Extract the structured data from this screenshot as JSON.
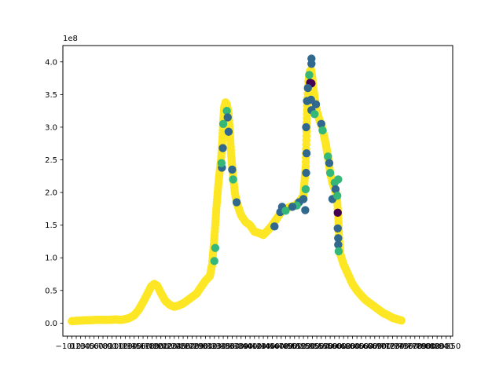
{
  "chart_data": {
    "type": "scatter",
    "title": "",
    "xlabel": "",
    "ylabel": "",
    "y_offset_label": "1e8",
    "y_tick_labels": [
      "0.0",
      "0.5",
      "1.0",
      "1.5",
      "2.0",
      "2.5",
      "3.0",
      "3.5",
      "4.0"
    ],
    "y_tick_values": [
      0.0,
      0.5,
      1.0,
      1.5,
      2.0,
      2.5,
      3.0,
      3.5,
      4.0
    ],
    "ylim": [
      -0.2,
      4.25
    ],
    "xlim": [
      -20,
      855
    ],
    "x_tick_note": "x tick labels are overlapping and illegible; the two legible end labels are kept",
    "x_tick_labels_visible": [
      "−10",
      "850"
    ],
    "grid": false,
    "legend": "none",
    "colors": {
      "yellow": "#fde725",
      "green": "#35b779",
      "blue": "#31688e",
      "purple": "#440154"
    },
    "base_curve_points": [
      [
        0,
        0.03
      ],
      [
        20,
        0.04
      ],
      [
        40,
        0.045
      ],
      [
        60,
        0.05
      ],
      [
        80,
        0.05
      ],
      [
        100,
        0.055
      ],
      [
        110,
        0.05
      ],
      [
        120,
        0.06
      ],
      [
        130,
        0.08
      ],
      [
        140,
        0.12
      ],
      [
        150,
        0.2
      ],
      [
        160,
        0.32
      ],
      [
        170,
        0.45
      ],
      [
        178,
        0.56
      ],
      [
        185,
        0.6
      ],
      [
        192,
        0.57
      ],
      [
        200,
        0.46
      ],
      [
        210,
        0.34
      ],
      [
        220,
        0.28
      ],
      [
        230,
        0.25
      ],
      [
        240,
        0.27
      ],
      [
        250,
        0.3
      ],
      [
        260,
        0.35
      ],
      [
        270,
        0.4
      ],
      [
        280,
        0.45
      ],
      [
        290,
        0.55
      ],
      [
        300,
        0.65
      ],
      [
        310,
        0.72
      ],
      [
        315,
        0.9
      ],
      [
        320,
        1.3
      ],
      [
        325,
        1.8
      ],
      [
        330,
        2.2
      ],
      [
        335,
        2.5
      ],
      [
        338,
        2.8
      ],
      [
        340,
        3.1
      ],
      [
        342,
        3.3
      ],
      [
        345,
        3.38
      ],
      [
        348,
        3.35
      ],
      [
        352,
        3.2
      ],
      [
        355,
        2.9
      ],
      [
        358,
        2.55
      ],
      [
        362,
        2.25
      ],
      [
        366,
        2.0
      ],
      [
        370,
        1.85
      ],
      [
        375,
        1.75
      ],
      [
        380,
        1.65
      ],
      [
        390,
        1.55
      ],
      [
        400,
        1.5
      ],
      [
        410,
        1.4
      ],
      [
        420,
        1.38
      ],
      [
        430,
        1.35
      ],
      [
        440,
        1.42
      ],
      [
        450,
        1.5
      ],
      [
        460,
        1.6
      ],
      [
        470,
        1.7
      ],
      [
        480,
        1.75
      ],
      [
        490,
        1.78
      ],
      [
        500,
        1.8
      ],
      [
        510,
        1.85
      ],
      [
        520,
        1.95
      ],
      [
        525,
        2.4
      ],
      [
        528,
        3.2
      ],
      [
        531,
        3.7
      ],
      [
        534,
        3.85
      ],
      [
        537,
        3.88
      ],
      [
        540,
        3.75
      ],
      [
        545,
        3.45
      ],
      [
        550,
        3.25
      ],
      [
        556,
        3.1
      ],
      [
        560,
        3.05
      ],
      [
        565,
        2.9
      ],
      [
        570,
        2.75
      ],
      [
        575,
        2.55
      ],
      [
        580,
        2.3
      ],
      [
        585,
        2.15
      ],
      [
        590,
        2.05
      ],
      [
        595,
        1.95
      ],
      [
        598,
        1.65
      ],
      [
        600,
        1.3
      ],
      [
        603,
        1.05
      ],
      [
        610,
        0.9
      ],
      [
        620,
        0.75
      ],
      [
        630,
        0.6
      ],
      [
        640,
        0.5
      ],
      [
        650,
        0.42
      ],
      [
        660,
        0.35
      ],
      [
        670,
        0.3
      ],
      [
        680,
        0.25
      ],
      [
        690,
        0.2
      ],
      [
        700,
        0.15
      ],
      [
        710,
        0.12
      ],
      [
        720,
        0.08
      ],
      [
        730,
        0.06
      ],
      [
        740,
        0.04
      ]
    ],
    "extra_points": [
      {
        "x": 538,
        "y": 4.05,
        "color": "blue"
      },
      {
        "x": 538,
        "y": 3.97,
        "color": "blue"
      },
      {
        "x": 537,
        "y": 3.42,
        "color": "blue"
      },
      {
        "x": 538,
        "y": 3.26,
        "color": "blue"
      },
      {
        "x": 538,
        "y": 3.67,
        "color": "purple"
      },
      {
        "x": 535,
        "y": 3.68,
        "color": "purple"
      },
      {
        "x": 528,
        "y": 3.4,
        "color": "blue"
      },
      {
        "x": 526,
        "y": 3.0,
        "color": "blue"
      },
      {
        "x": 527,
        "y": 2.6,
        "color": "blue"
      },
      {
        "x": 526,
        "y": 2.3,
        "color": "blue"
      },
      {
        "x": 525,
        "y": 2.05,
        "color": "green"
      },
      {
        "x": 524,
        "y": 1.73,
        "color": "blue"
      },
      {
        "x": 520,
        "y": 1.9,
        "color": "blue"
      },
      {
        "x": 510,
        "y": 1.85,
        "color": "blue"
      },
      {
        "x": 505,
        "y": 1.8,
        "color": "green"
      },
      {
        "x": 495,
        "y": 1.78,
        "color": "blue"
      },
      {
        "x": 530,
        "y": 3.6,
        "color": "blue"
      },
      {
        "x": 533,
        "y": 3.8,
        "color": "green"
      },
      {
        "x": 545,
        "y": 3.2,
        "color": "green"
      },
      {
        "x": 548,
        "y": 3.35,
        "color": "blue"
      },
      {
        "x": 575,
        "y": 2.55,
        "color": "green"
      },
      {
        "x": 578,
        "y": 2.45,
        "color": "blue"
      },
      {
        "x": 580,
        "y": 2.3,
        "color": "green"
      },
      {
        "x": 585,
        "y": 1.9,
        "color": "blue"
      },
      {
        "x": 590,
        "y": 2.15,
        "color": "green"
      },
      {
        "x": 592,
        "y": 2.05,
        "color": "blue"
      },
      {
        "x": 596,
        "y": 1.95,
        "color": "green"
      },
      {
        "x": 598,
        "y": 2.2,
        "color": "green"
      },
      {
        "x": 597,
        "y": 1.69,
        "color": "purple"
      },
      {
        "x": 597,
        "y": 1.45,
        "color": "blue"
      },
      {
        "x": 598,
        "y": 1.3,
        "color": "blue"
      },
      {
        "x": 598,
        "y": 1.2,
        "color": "blue"
      },
      {
        "x": 599,
        "y": 1.1,
        "color": "green"
      },
      {
        "x": 340,
        "y": 3.05,
        "color": "green"
      },
      {
        "x": 339,
        "y": 2.68,
        "color": "blue"
      },
      {
        "x": 337,
        "y": 2.38,
        "color": "blue"
      },
      {
        "x": 336,
        "y": 2.45,
        "color": "green"
      },
      {
        "x": 348,
        "y": 3.25,
        "color": "green"
      },
      {
        "x": 350,
        "y": 3.15,
        "color": "blue"
      },
      {
        "x": 352,
        "y": 2.93,
        "color": "blue"
      },
      {
        "x": 360,
        "y": 2.35,
        "color": "blue"
      },
      {
        "x": 362,
        "y": 2.2,
        "color": "green"
      },
      {
        "x": 370,
        "y": 1.85,
        "color": "blue"
      },
      {
        "x": 322,
        "y": 1.15,
        "color": "green"
      },
      {
        "x": 320,
        "y": 0.95,
        "color": "green"
      },
      {
        "x": 468,
        "y": 1.7,
        "color": "blue"
      },
      {
        "x": 472,
        "y": 1.78,
        "color": "blue"
      },
      {
        "x": 480,
        "y": 1.72,
        "color": "green"
      },
      {
        "x": 455,
        "y": 1.48,
        "color": "blue"
      },
      {
        "x": 560,
        "y": 3.05,
        "color": "blue"
      },
      {
        "x": 563,
        "y": 2.95,
        "color": "green"
      }
    ]
  }
}
